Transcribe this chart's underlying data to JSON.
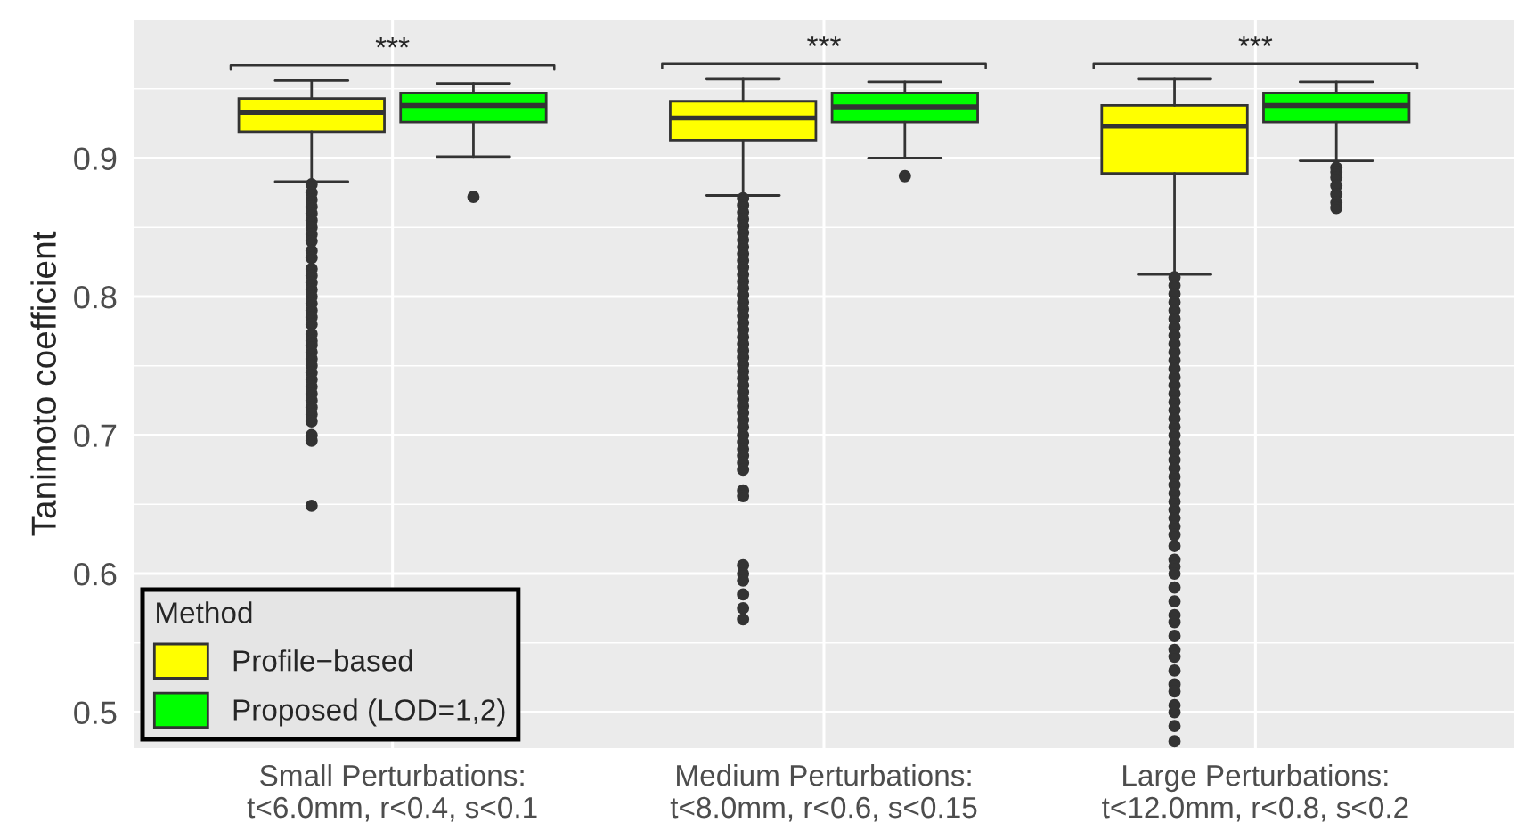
{
  "chart_data": {
    "type": "box",
    "ylabel": "Tanimoto coefficient",
    "legend_title": "Method",
    "legend": "bottom left",
    "grid": true,
    "categories": [
      "Small Perturbations:\nt<6.0mm, r<0.4, s<0.1",
      "Medium Perturbations:\nt<8.0mm, r<0.6, s<0.15",
      "Large Perturbations:\nt<12.0mm, r<0.8, s<0.2"
    ],
    "series": [
      {
        "name": "Profile−based",
        "color": "#ffff00",
        "boxes": [
          {
            "low": 0.883,
            "q1": 0.919,
            "median": 0.933,
            "q3": 0.943,
            "high": 0.956,
            "outliers": [
              0.881,
              0.875,
              0.87,
              0.865,
              0.86,
              0.855,
              0.85,
              0.845,
              0.84,
              0.833,
              0.828,
              0.82,
              0.815,
              0.81,
              0.805,
              0.8,
              0.795,
              0.79,
              0.785,
              0.78,
              0.773,
              0.768,
              0.765,
              0.76,
              0.755,
              0.75,
              0.745,
              0.74,
              0.735,
              0.73,
              0.725,
              0.72,
              0.715,
              0.71,
              0.7,
              0.696,
              0.649
            ]
          },
          {
            "low": 0.873,
            "q1": 0.913,
            "median": 0.929,
            "q3": 0.941,
            "high": 0.957,
            "outliers": [
              0.871,
              0.866,
              0.861,
              0.856,
              0.851,
              0.846,
              0.841,
              0.836,
              0.831,
              0.826,
              0.821,
              0.816,
              0.811,
              0.806,
              0.801,
              0.796,
              0.791,
              0.786,
              0.781,
              0.776,
              0.771,
              0.766,
              0.761,
              0.756,
              0.751,
              0.746,
              0.741,
              0.736,
              0.731,
              0.726,
              0.721,
              0.716,
              0.711,
              0.706,
              0.7,
              0.695,
              0.69,
              0.685,
              0.68,
              0.675,
              0.66,
              0.656,
              0.606,
              0.6,
              0.595,
              0.585,
              0.575,
              0.567
            ]
          },
          {
            "low": 0.816,
            "q1": 0.889,
            "median": 0.923,
            "q3": 0.938,
            "high": 0.957,
            "outliers": [
              0.814,
              0.808,
              0.802,
              0.796,
              0.79,
              0.784,
              0.778,
              0.772,
              0.766,
              0.76,
              0.754,
              0.748,
              0.742,
              0.736,
              0.73,
              0.724,
              0.718,
              0.712,
              0.706,
              0.7,
              0.694,
              0.688,
              0.682,
              0.676,
              0.67,
              0.664,
              0.658,
              0.652,
              0.646,
              0.64,
              0.634,
              0.628,
              0.62,
              0.61,
              0.605,
              0.6,
              0.59,
              0.58,
              0.57,
              0.565,
              0.555,
              0.545,
              0.54,
              0.53,
              0.52,
              0.515,
              0.505,
              0.5,
              0.49,
              0.479
            ]
          }
        ]
      },
      {
        "name": "Proposed (LOD=1,2)",
        "color": "#00ff00",
        "boxes": [
          {
            "low": 0.901,
            "q1": 0.926,
            "median": 0.938,
            "q3": 0.947,
            "high": 0.954,
            "outliers": [
              0.872
            ]
          },
          {
            "low": 0.9,
            "q1": 0.926,
            "median": 0.937,
            "q3": 0.947,
            "high": 0.955,
            "outliers": [
              0.887
            ]
          },
          {
            "low": 0.898,
            "q1": 0.926,
            "median": 0.938,
            "q3": 0.947,
            "high": 0.955,
            "outliers": [
              0.893,
              0.89,
              0.886,
              0.88,
              0.874,
              0.868,
              0.864
            ]
          }
        ]
      }
    ],
    "ylim": [
      0.474,
      1.0
    ],
    "yticks": [
      0.5,
      0.6,
      0.7,
      0.8,
      0.9
    ],
    "annotations": [
      "***",
      "***",
      "***"
    ]
  }
}
